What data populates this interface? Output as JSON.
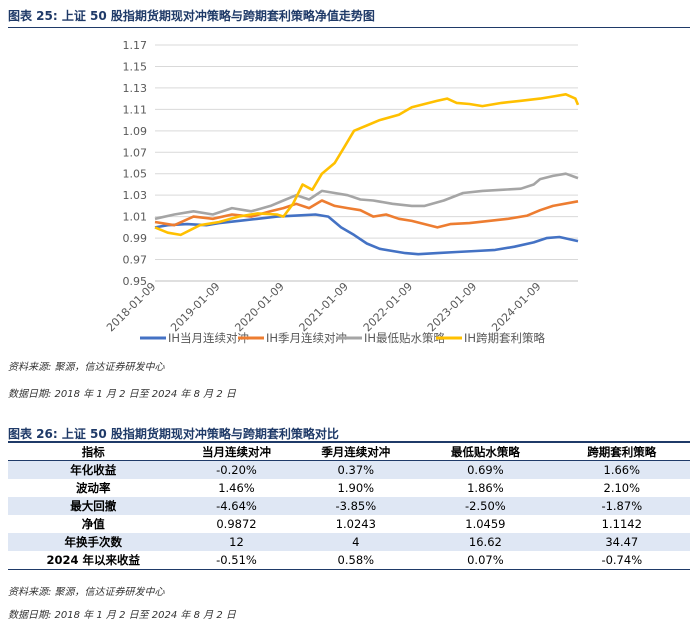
{
  "figure": {
    "title": "图表 25:  上证 50 股指期货期现对冲策略与跨期套利策略净值走势图",
    "source": "资料来源:  聚源，信达证券研发中心",
    "date": "数据日期:  2018 年 1 月 2 日至 2024 年 8 月 2 日"
  },
  "chart_data": {
    "type": "line",
    "title": "",
    "xlabel": "",
    "ylabel": "",
    "ylim": [
      0.95,
      1.17
    ],
    "yticks": [
      "0.95",
      "0.97",
      "0.99",
      "1.01",
      "1.03",
      "1.05",
      "1.07",
      "1.09",
      "1.11",
      "1.13",
      "1.15",
      "1.17"
    ],
    "xticks": [
      "2018-01-09",
      "2019-01-09",
      "2020-01-09",
      "2021-01-09",
      "2022-01-09",
      "2023-01-09",
      "2024-01-09"
    ],
    "x_start": 2018.0,
    "x_end": 2024.59,
    "x_tick_positions": [
      2018.02,
      2019.02,
      2020.02,
      2021.02,
      2022.02,
      2023.02,
      2024.02
    ],
    "gridlines": true,
    "legend_position": "bottom",
    "series": [
      {
        "name": "IH当月连续对冲",
        "color": "#4472c4",
        "x": [
          2018.0,
          2018.2,
          2018.5,
          2018.8,
          2019.0,
          2019.3,
          2019.6,
          2019.9,
          2020.2,
          2020.5,
          2020.7,
          2020.9,
          2021.1,
          2021.3,
          2021.5,
          2021.7,
          2021.9,
          2022.1,
          2022.4,
          2022.7,
          2023.0,
          2023.3,
          2023.6,
          2023.9,
          2024.1,
          2024.3,
          2024.59
        ],
        "values": [
          1.0,
          1.002,
          1.003,
          1.002,
          1.004,
          1.006,
          1.008,
          1.01,
          1.011,
          1.012,
          1.01,
          1.0,
          0.993,
          0.985,
          0.98,
          0.978,
          0.976,
          0.975,
          0.976,
          0.977,
          0.978,
          0.979,
          0.982,
          0.986,
          0.99,
          0.991,
          0.9872
        ]
      },
      {
        "name": "IH季月连续对冲",
        "color": "#ed7d31",
        "x": [
          2018.0,
          2018.3,
          2018.6,
          2018.9,
          2019.2,
          2019.5,
          2019.8,
          2020.0,
          2020.2,
          2020.4,
          2020.6,
          2020.8,
          2021.0,
          2021.2,
          2021.4,
          2021.6,
          2021.8,
          2022.0,
          2022.2,
          2022.4,
          2022.6,
          2022.9,
          2023.2,
          2023.5,
          2023.8,
          2024.0,
          2024.2,
          2024.59
        ],
        "values": [
          1.005,
          1.002,
          1.01,
          1.008,
          1.012,
          1.01,
          1.015,
          1.018,
          1.022,
          1.018,
          1.025,
          1.02,
          1.018,
          1.016,
          1.01,
          1.012,
          1.008,
          1.006,
          1.003,
          1.0,
          1.003,
          1.004,
          1.006,
          1.008,
          1.011,
          1.016,
          1.02,
          1.0243
        ]
      },
      {
        "name": "IH最低贴水策略",
        "color": "#a5a5a5",
        "x": [
          2018.0,
          2018.3,
          2018.6,
          2018.9,
          2019.2,
          2019.5,
          2019.8,
          2020.0,
          2020.2,
          2020.4,
          2020.6,
          2020.8,
          2021.0,
          2021.2,
          2021.4,
          2021.7,
          2022.0,
          2022.2,
          2022.5,
          2022.8,
          2023.1,
          2023.4,
          2023.7,
          2023.9,
          2024.0,
          2024.2,
          2024.4,
          2024.59
        ],
        "values": [
          1.008,
          1.012,
          1.015,
          1.012,
          1.018,
          1.015,
          1.02,
          1.025,
          1.03,
          1.026,
          1.034,
          1.032,
          1.03,
          1.026,
          1.025,
          1.022,
          1.02,
          1.02,
          1.025,
          1.032,
          1.034,
          1.035,
          1.036,
          1.04,
          1.045,
          1.048,
          1.05,
          1.0459
        ]
      },
      {
        "name": "IH跨期套利策略",
        "color": "#ffc000",
        "x": [
          2018.0,
          2018.2,
          2018.4,
          2018.7,
          2019.0,
          2019.3,
          2019.6,
          2019.9,
          2020.0,
          2020.15,
          2020.3,
          2020.45,
          2020.6,
          2020.8,
          2020.95,
          2021.1,
          2021.3,
          2021.5,
          2021.8,
          2022.0,
          2022.2,
          2022.4,
          2022.55,
          2022.7,
          2022.9,
          2023.1,
          2023.4,
          2023.7,
          2024.0,
          2024.2,
          2024.4,
          2024.55,
          2024.59
        ],
        "values": [
          1.0,
          0.995,
          0.993,
          1.002,
          1.005,
          1.01,
          1.013,
          1.012,
          1.01,
          1.022,
          1.04,
          1.035,
          1.05,
          1.06,
          1.075,
          1.09,
          1.095,
          1.1,
          1.105,
          1.112,
          1.115,
          1.118,
          1.12,
          1.116,
          1.115,
          1.113,
          1.116,
          1.118,
          1.12,
          1.122,
          1.124,
          1.12,
          1.1142
        ]
      }
    ]
  },
  "table": {
    "title": "图表 26:  上证 50 股指期货期现对冲策略与跨期套利策略对比",
    "headers": [
      "指标",
      "当月连续对冲",
      "季月连续对冲",
      "最低贴水策略",
      "跨期套利策略"
    ],
    "rows": [
      [
        "年化收益",
        "-0.20%",
        "0.37%",
        "0.69%",
        "1.66%"
      ],
      [
        "波动率",
        "1.46%",
        "1.90%",
        "1.86%",
        "2.10%"
      ],
      [
        "最大回撤",
        "-4.64%",
        "-3.85%",
        "-2.50%",
        "-1.87%"
      ],
      [
        "净值",
        "0.9872",
        "1.0243",
        "1.0459",
        "1.1142"
      ],
      [
        "年换手次数",
        "12",
        "4",
        "16.62",
        "34.47"
      ],
      [
        "2024 年以来收益",
        "-0.51%",
        "0.58%",
        "0.07%",
        "-0.74%"
      ]
    ],
    "source": "资料来源:  聚源，信达证券研发中心",
    "date": "数据日期:  2018 年 1 月 2 日至 2024 年 8 月 2 日"
  }
}
